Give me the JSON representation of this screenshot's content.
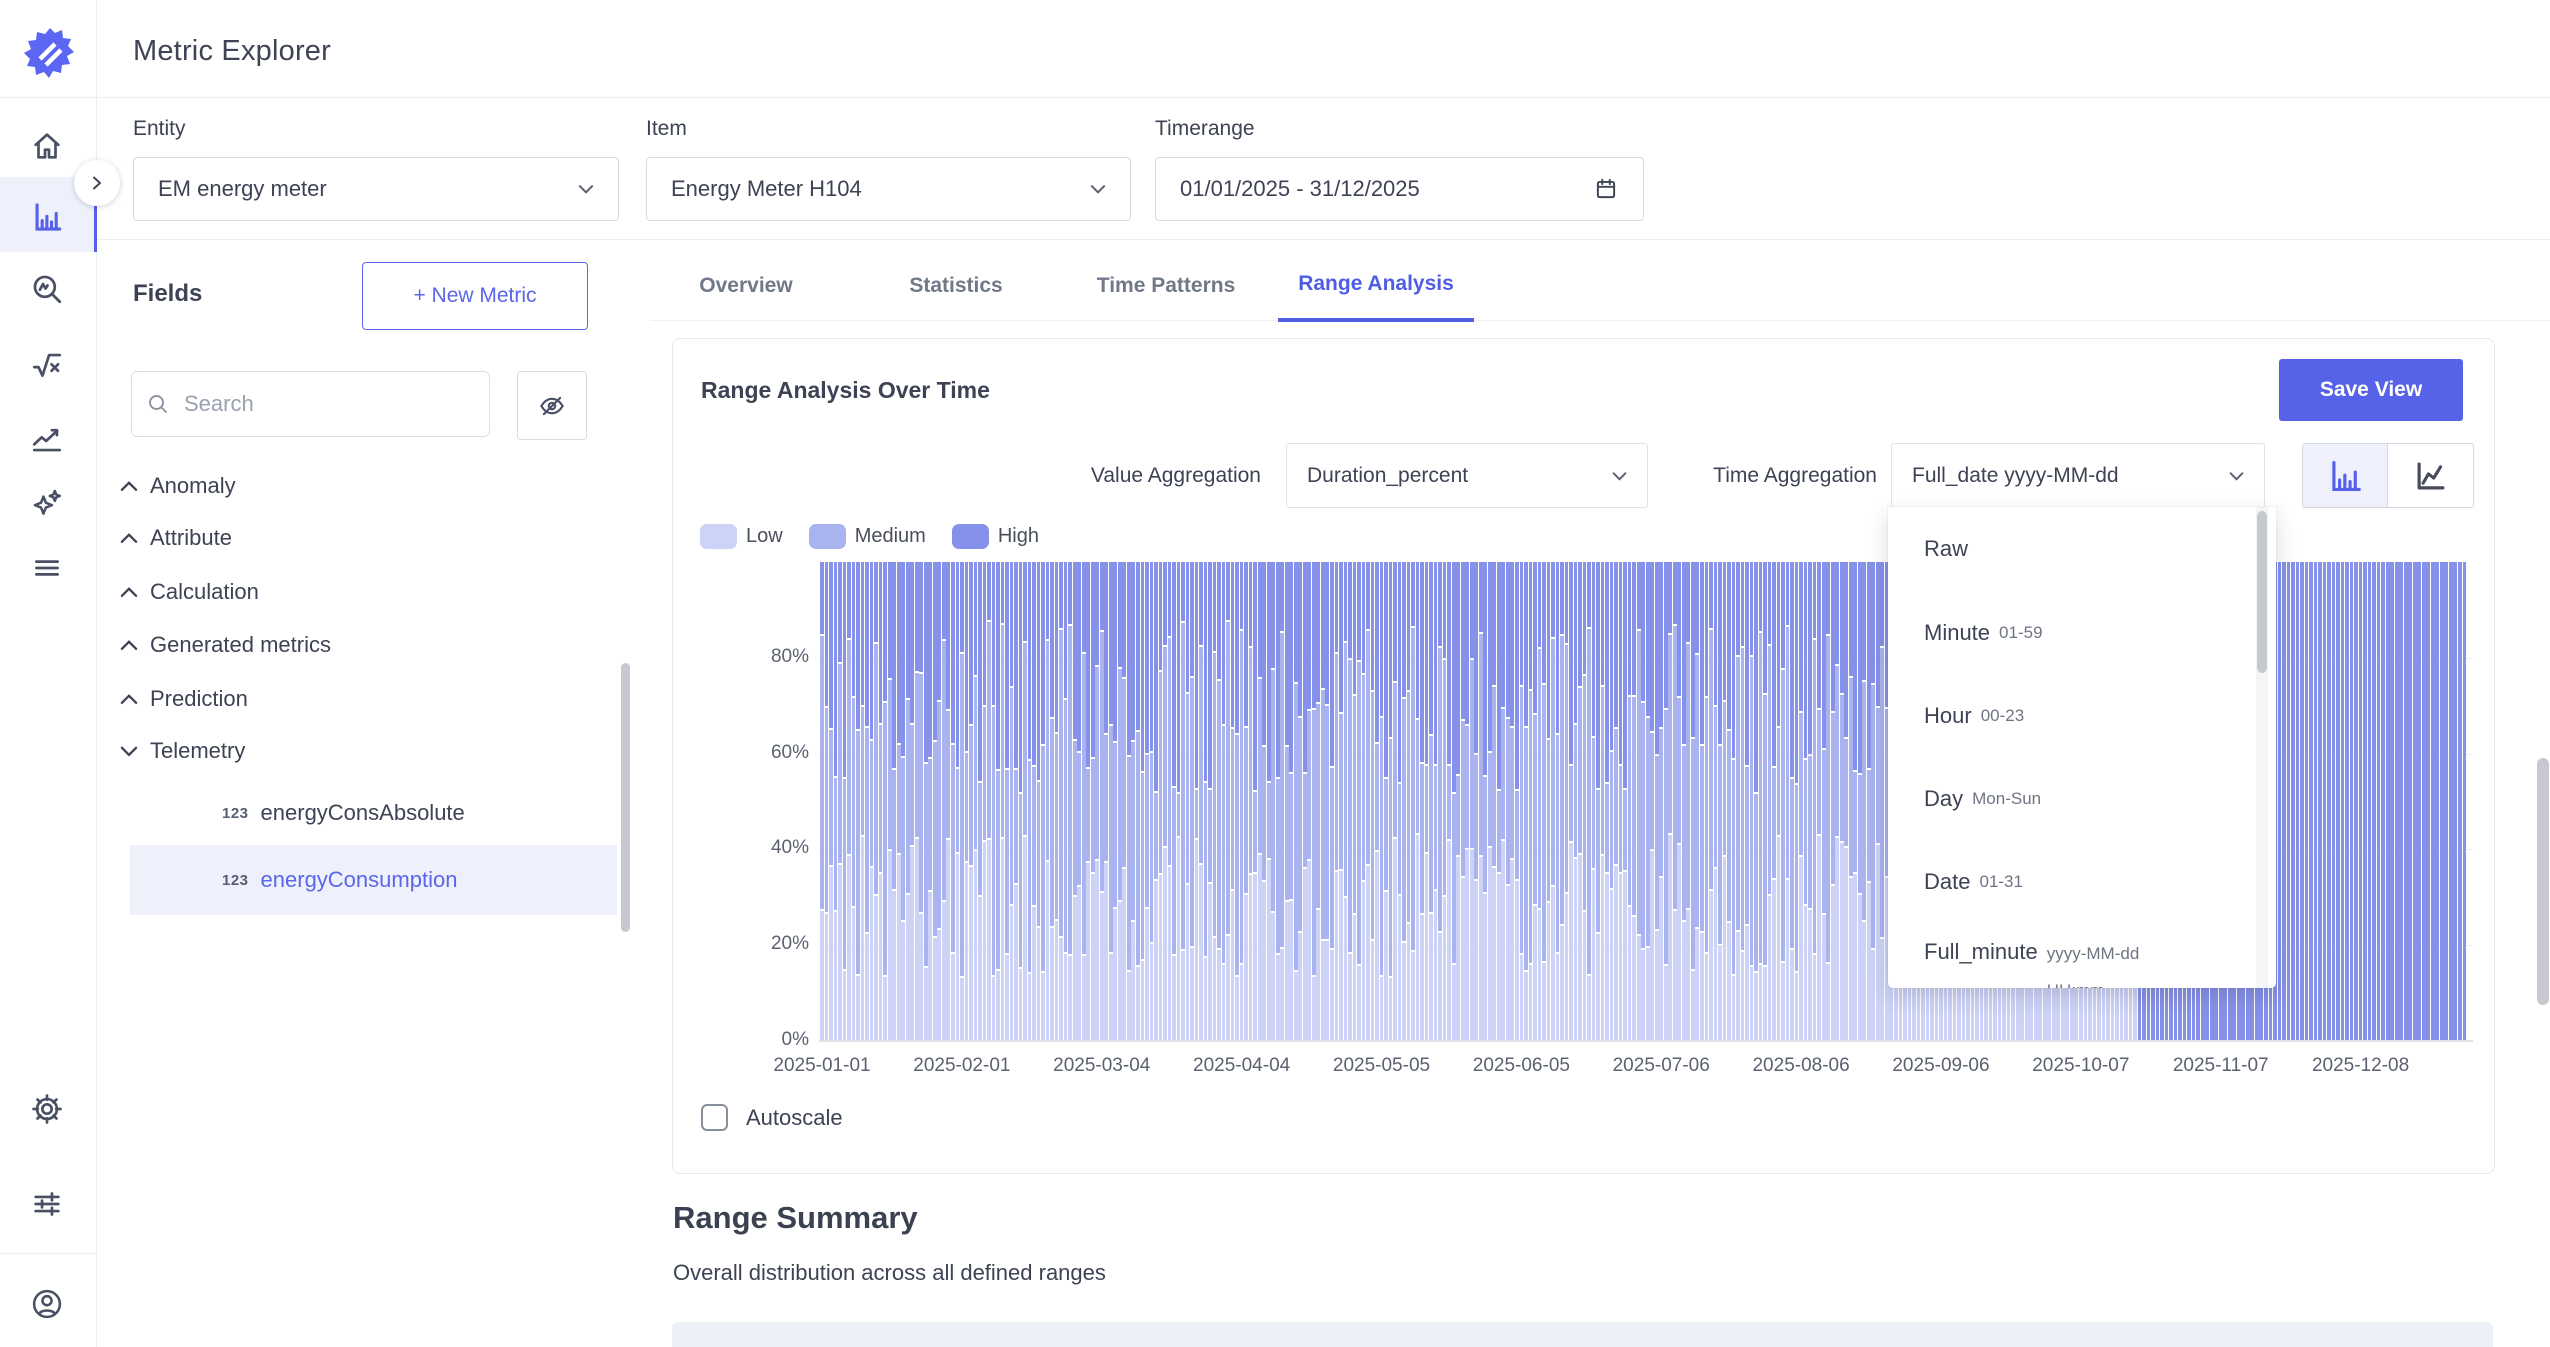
{
  "app": {
    "title": "Metric Explorer"
  },
  "colors": {
    "accent": "#5661e8",
    "accent_light_bg": "#eef0fb",
    "low": "#ccd3f6",
    "medium": "#a9b3ef",
    "high": "#8691e9",
    "icon": "#4a5064",
    "border": "#d9dce3",
    "text": "#3d4354",
    "muted": "#717888"
  },
  "sidebar": {
    "icons": [
      "home",
      "bar-chart",
      "anomaly-search",
      "square-root",
      "trend",
      "sparkles",
      "menu",
      "settings",
      "sliders",
      "profile"
    ],
    "active": "bar-chart"
  },
  "filters": {
    "entity": {
      "label": "Entity",
      "value": "EM energy meter"
    },
    "item": {
      "label": "Item",
      "value": "Energy Meter H104"
    },
    "timerange": {
      "label": "Timerange",
      "value": "01/01/2025 - 31/12/2025"
    }
  },
  "fields_panel": {
    "title": "Fields",
    "new_metric_button": "+ New Metric",
    "search_placeholder": "Search",
    "groups": [
      {
        "label": "Anomaly",
        "state": "collapsed"
      },
      {
        "label": "Attribute",
        "state": "collapsed"
      },
      {
        "label": "Calculation",
        "state": "collapsed"
      },
      {
        "label": "Generated metrics",
        "state": "collapsed"
      },
      {
        "label": "Prediction",
        "state": "collapsed"
      },
      {
        "label": "Telemetry",
        "state": "expanded",
        "children": [
          {
            "label": "energyConsAbsolute",
            "selected": false
          },
          {
            "label": "energyConsumption",
            "selected": true
          }
        ]
      }
    ]
  },
  "tabs": {
    "items": [
      "Overview",
      "Statistics",
      "Time Patterns",
      "Range Analysis"
    ],
    "active": "Range Analysis"
  },
  "panel": {
    "title": "Range Analysis Over Time",
    "save_button": "Save View",
    "value_aggregation_label": "Value Aggregation",
    "value_aggregation_value": "Duration_percent",
    "time_aggregation_label": "Time Aggregation",
    "time_aggregation_value": "Full_date yyyy-MM-dd",
    "autoscale_label": "Autoscale"
  },
  "time_aggregation_dropdown": {
    "options": [
      {
        "label": "Raw",
        "suffix": ""
      },
      {
        "label": "Minute",
        "suffix": "01-59"
      },
      {
        "label": "Hour",
        "suffix": "00-23"
      },
      {
        "label": "Day",
        "suffix": "Mon-Sun"
      },
      {
        "label": "Date",
        "suffix": "01-31"
      },
      {
        "label": "Full_minute",
        "suffix": "yyyy-MM-dd HH:mm"
      }
    ]
  },
  "chart_data": {
    "type": "bar",
    "subtype": "stacked-percent-daily",
    "title": "Range Analysis Over Time",
    "x_start": "2025-01-01",
    "x_end": "2025-12-31",
    "days": 365,
    "ylim": [
      0,
      100
    ],
    "yticks": [
      "0%",
      "20%",
      "40%",
      "60%",
      "80%"
    ],
    "ytick_values": [
      0,
      20,
      40,
      60,
      80
    ],
    "xtick_labels": [
      "2025-01-01",
      "2025-02-01",
      "2025-03-04",
      "2025-04-04",
      "2025-05-05",
      "2025-06-05",
      "2025-07-06",
      "2025-08-06",
      "2025-09-06",
      "2025-10-07",
      "2025-11-07",
      "2025-12-08"
    ],
    "xtick_days": [
      0,
      31,
      62,
      93,
      124,
      155,
      186,
      217,
      248,
      279,
      310,
      341
    ],
    "series": [
      {
        "name": "Low",
        "color": "#ccd3f6",
        "estimate": "bottom segment, roughly 13-43% of each daily bar"
      },
      {
        "name": "Medium",
        "color": "#a9b3ef",
        "estimate": "middle segment, up to roughly 52-88%"
      },
      {
        "name": "High",
        "color": "#8691e9",
        "estimate": "top segment, remainder up to 100%"
      }
    ],
    "solid_high_from_day": 292,
    "note": "Daily 100%-stacked bars; from ~2025-10-20 through 2025-12-31 bars are entirely the High range",
    "generation": {
      "seed": 12,
      "low_range": [
        13,
        43
      ],
      "high_start_range": [
        52,
        88
      ]
    },
    "legend_position": "top-left",
    "grid": true
  },
  "summary": {
    "title": "Range Summary",
    "subtitle": "Overall distribution across all defined ranges"
  }
}
